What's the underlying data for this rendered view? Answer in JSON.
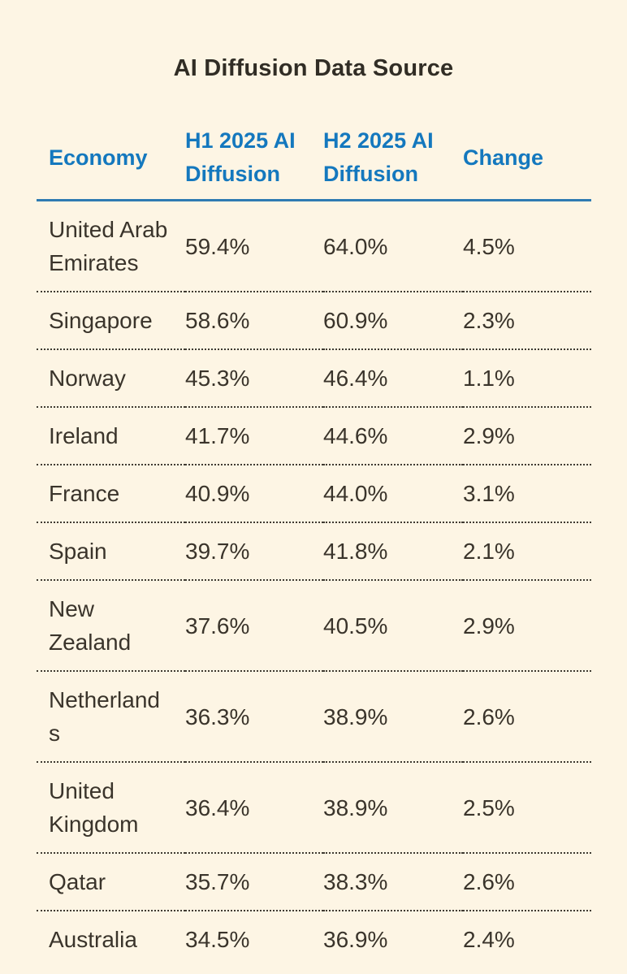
{
  "title": "AI Diffusion Data Source",
  "colors": {
    "background": "#FDF5E4",
    "header_accent_blue": "#1478BE",
    "header_underline_blue": "#2E7BB2",
    "body_text": "#3A342B",
    "row_divider_dotted": "#3F3A31"
  },
  "chart_data": {
    "type": "table",
    "title": "AI Diffusion Data Source",
    "columns": [
      "Economy",
      "H1 2025 AI Diffusion",
      "H2 2025 AI Diffusion",
      "Change"
    ],
    "rows": [
      [
        "United Arab Emirates",
        "59.4%",
        "64.0%",
        "4.5%"
      ],
      [
        "Singapore",
        "58.6%",
        "60.9%",
        "2.3%"
      ],
      [
        "Norway",
        "45.3%",
        "46.4%",
        "1.1%"
      ],
      [
        "Ireland",
        "41.7%",
        "44.6%",
        "2.9%"
      ],
      [
        "France",
        "40.9%",
        "44.0%",
        "3.1%"
      ],
      [
        "Spain",
        "39.7%",
        "41.8%",
        "2.1%"
      ],
      [
        "New Zealand",
        "37.6%",
        "40.5%",
        "2.9%"
      ],
      [
        "Netherlands",
        "36.3%",
        "38.9%",
        "2.6%"
      ],
      [
        "United Kingdom",
        "36.4%",
        "38.9%",
        "2.5%"
      ],
      [
        "Qatar",
        "35.7%",
        "38.3%",
        "2.6%"
      ],
      [
        "Australia",
        "34.5%",
        "36.9%",
        "2.4%"
      ]
    ]
  }
}
